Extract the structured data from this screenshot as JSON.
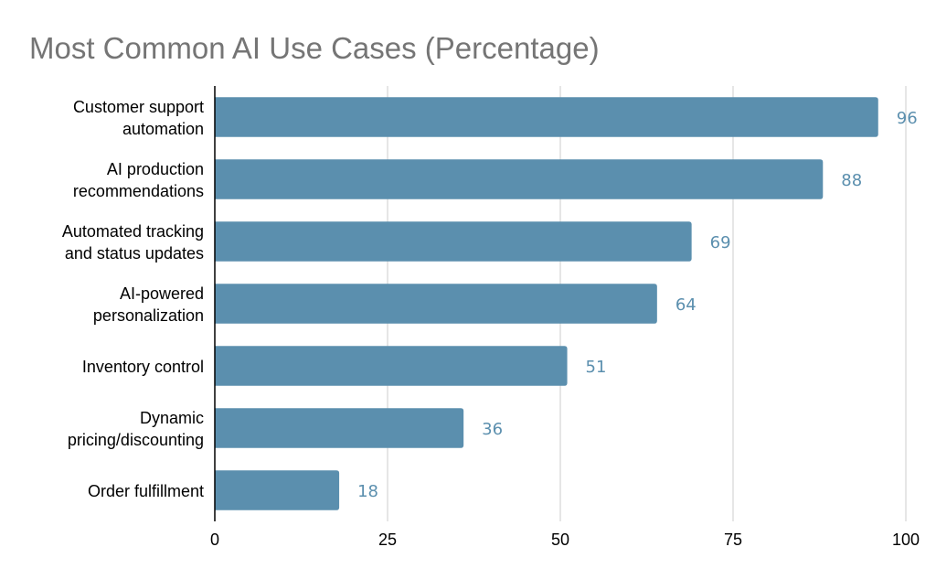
{
  "chart_data": {
    "type": "bar",
    "orientation": "horizontal",
    "title": "Most Common AI Use Cases (Percentage)",
    "categories": [
      [
        "Customer support",
        "automation"
      ],
      [
        "AI production",
        "recommendations"
      ],
      [
        "Automated tracking",
        "and status updates"
      ],
      [
        "AI-powered",
        "personalization"
      ],
      [
        "Inventory control"
      ],
      [
        "Dynamic",
        "pricing/discounting"
      ],
      [
        "Order fulfillment"
      ]
    ],
    "values": [
      96,
      88,
      69,
      64,
      51,
      36,
      18
    ],
    "xlim": [
      0,
      100
    ],
    "x_ticks": [
      "0",
      "25",
      "50",
      "75",
      "100"
    ],
    "grid": true,
    "legend": "none",
    "bar_color": "#5b8fae",
    "data_label_color": "#5b8fae",
    "grid_color": "#cccccc",
    "axis_color": "#000000"
  }
}
